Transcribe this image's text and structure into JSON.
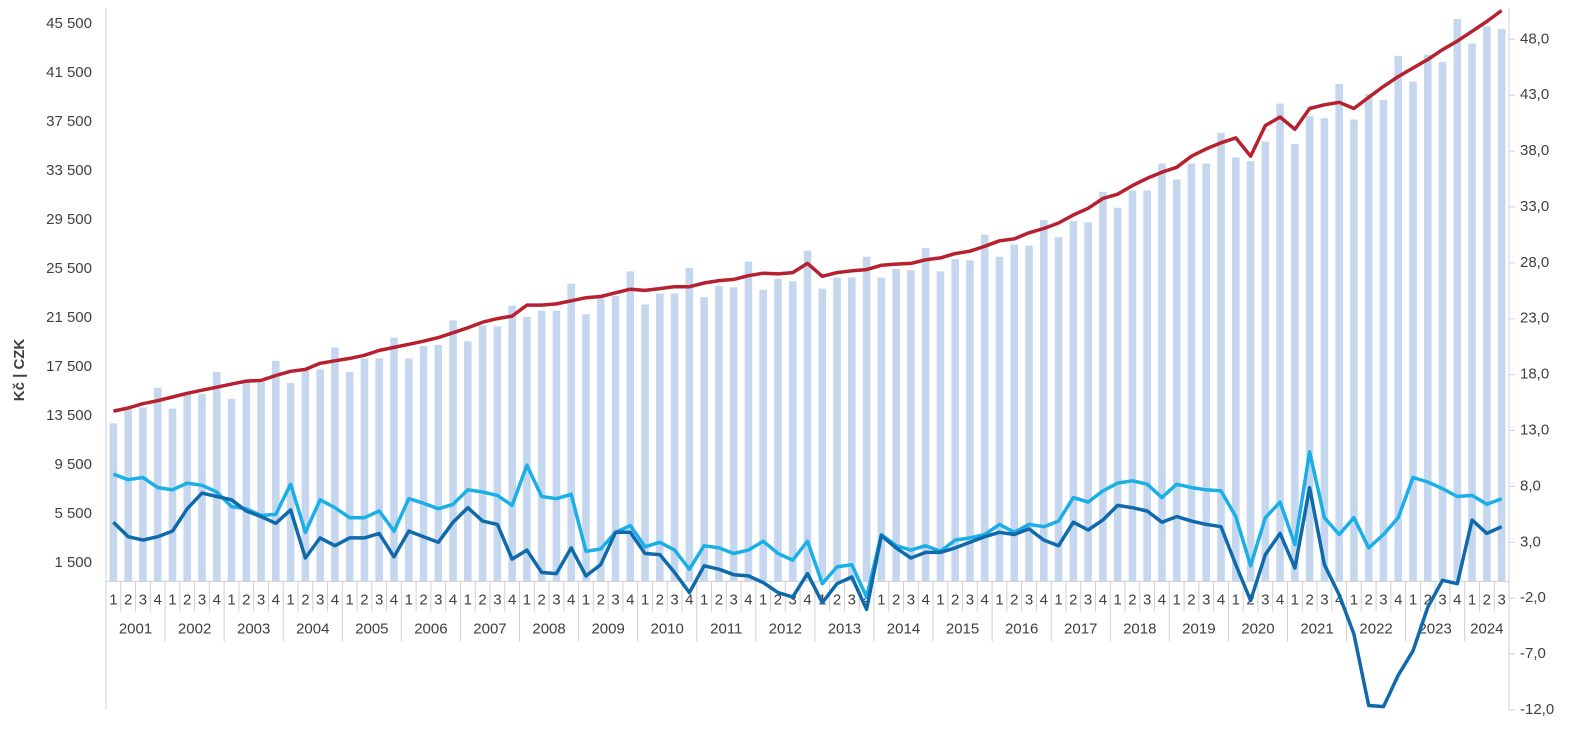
{
  "chart_data": {
    "type": "bar-line",
    "y_label": "Kč | CZK",
    "categories": [
      "1",
      "2",
      "3",
      "4",
      "1",
      "2",
      "3",
      "4",
      "1",
      "2",
      "3",
      "4",
      "1",
      "2",
      "3",
      "4",
      "1",
      "2",
      "3",
      "4",
      "1",
      "2",
      "3",
      "4",
      "1",
      "2",
      "3",
      "4",
      "1",
      "2",
      "3",
      "4",
      "1",
      "2",
      "3",
      "4",
      "1",
      "2",
      "3",
      "4",
      "1",
      "2",
      "3",
      "4",
      "1",
      "2",
      "3",
      "4",
      "1",
      "2",
      "3",
      "4",
      "1",
      "2",
      "3",
      "4",
      "1",
      "2",
      "3",
      "4",
      "1",
      "2",
      "3",
      "4",
      "1",
      "2",
      "3",
      "4",
      "1",
      "2",
      "3",
      "4",
      "1",
      "2",
      "3",
      "4",
      "1",
      "2",
      "3",
      "4",
      "1",
      "2",
      "3",
      "4",
      "1",
      "2",
      "3",
      "4",
      "1",
      "2",
      "3",
      "4",
      "1",
      "2",
      "3"
    ],
    "years": [
      "2001",
      "2002",
      "2003",
      "2004",
      "2005",
      "2006",
      "2007",
      "2008",
      "2009",
      "2010",
      "2011",
      "2012",
      "2013",
      "2014",
      "2015",
      "2016",
      "2017",
      "2018",
      "2019",
      "2020",
      "2021",
      "2022",
      "2023",
      "2024"
    ],
    "ylim": [
      -10500,
      46800
    ],
    "yticks": [
      {
        "value": 1500,
        "label": "1 500"
      },
      {
        "value": 5500,
        "label": "5 500"
      },
      {
        "value": 9500,
        "label": "9 500"
      },
      {
        "value": 13500,
        "label": "13 500"
      },
      {
        "value": 17500,
        "label": "17 500"
      },
      {
        "value": 21500,
        "label": "21 500"
      },
      {
        "value": 25500,
        "label": "25 500"
      },
      {
        "value": 29500,
        "label": "29 500"
      },
      {
        "value": 33500,
        "label": "33 500"
      },
      {
        "value": 37500,
        "label": "37 500"
      },
      {
        "value": 41500,
        "label": "41 500"
      },
      {
        "value": 45500,
        "label": "45 500"
      }
    ],
    "y2lim": [
      -12,
      50.8
    ],
    "y2ticks": [
      {
        "value": -12,
        "label": "-12,0"
      },
      {
        "value": -7,
        "label": "-7,0"
      },
      {
        "value": -2,
        "label": "-2,0"
      },
      {
        "value": 3,
        "label": "3,0"
      },
      {
        "value": 8,
        "label": "8,0"
      },
      {
        "value": 13,
        "label": "13,0"
      },
      {
        "value": 18,
        "label": "18,0"
      },
      {
        "value": 23,
        "label": "23,0"
      },
      {
        "value": 28,
        "label": "28,0"
      },
      {
        "value": 33,
        "label": "33,0"
      },
      {
        "value": 38,
        "label": "38,0"
      },
      {
        "value": 43,
        "label": "43,0"
      },
      {
        "value": 48,
        "label": "48,0"
      }
    ],
    "series": [
      {
        "kind": "bar",
        "color": "#c5d7ee",
        "values": [
          12900,
          14100,
          14200,
          15800,
          14100,
          15400,
          15300,
          17100,
          14900,
          16300,
          16300,
          18000,
          16200,
          17300,
          17300,
          19100,
          17100,
          18200,
          18200,
          19900,
          18200,
          19200,
          19300,
          21300,
          19600,
          20900,
          20800,
          22500,
          21600,
          22100,
          22100,
          24300,
          21800,
          23100,
          23300,
          25300,
          22600,
          23500,
          23500,
          25600,
          23200,
          24100,
          24000,
          26100,
          23800,
          24700,
          24500,
          27000,
          23900,
          24800,
          24800,
          26500,
          24800,
          25500,
          25400,
          27200,
          25300,
          26300,
          26200,
          28300,
          26500,
          27500,
          27400,
          29500,
          28100,
          29400,
          29300,
          31800,
          30500,
          31900,
          31900,
          34100,
          32800,
          34100,
          34100,
          36600,
          34600,
          34300,
          35900,
          39000,
          35700,
          38000,
          37800,
          40600,
          37700,
          39800,
          39300,
          42900,
          40800,
          43000,
          42400,
          45900,
          43900,
          45300,
          45100
        ]
      },
      {
        "kind": "line",
        "color": "#b7202e",
        "values": [
          13900,
          14150,
          14500,
          14750,
          15050,
          15350,
          15600,
          15850,
          16100,
          16350,
          16400,
          16800,
          17150,
          17300,
          17800,
          18000,
          18200,
          18450,
          18850,
          19100,
          19350,
          19600,
          19900,
          20300,
          20700,
          21150,
          21450,
          21650,
          22550,
          22550,
          22650,
          22900,
          23150,
          23250,
          23550,
          23850,
          23750,
          23900,
          24050,
          24050,
          24350,
          24550,
          24650,
          24950,
          25150,
          25100,
          25200,
          25950,
          24900,
          25200,
          25350,
          25450,
          25800,
          25900,
          25950,
          26250,
          26400,
          26750,
          26950,
          27350,
          27800,
          27950,
          28450,
          28800,
          29250,
          29900,
          30450,
          31250,
          31600,
          32300,
          32900,
          33400,
          33800,
          34700,
          35300,
          35800,
          36200,
          34700,
          37200,
          37900,
          36900,
          38600,
          38900,
          39100,
          38600,
          39500,
          40400,
          41200,
          41900,
          42600,
          43400,
          44100,
          44900,
          45700,
          46600
        ]
      },
      {
        "kind": "line",
        "axis": "y2",
        "color": "#1aafe6",
        "values": [
          9.1,
          8.6,
          8.8,
          7.9,
          7.7,
          8.3,
          8.1,
          7.5,
          6.2,
          6.0,
          5.4,
          5.5,
          8.2,
          3.9,
          6.8,
          6.1,
          5.2,
          5.2,
          5.8,
          4.0,
          6.9,
          6.5,
          6.0,
          6.4,
          7.7,
          7.5,
          7.2,
          6.3,
          9.9,
          7.1,
          6.9,
          7.3,
          2.2,
          2.4,
          3.9,
          4.5,
          2.6,
          3.0,
          2.3,
          0.6,
          2.7,
          2.5,
          2.0,
          2.3,
          3.1,
          2.0,
          1.4,
          3.1,
          -0.7,
          0.8,
          1.0,
          -1.9,
          3.7,
          2.7,
          2.3,
          2.7,
          2.2,
          3.2,
          3.4,
          3.7,
          4.6,
          3.9,
          4.6,
          4.4,
          4.9,
          7.0,
          6.6,
          7.6,
          8.3,
          8.5,
          8.2,
          7.0,
          8.2,
          7.9,
          7.7,
          7.6,
          5.3,
          0.9,
          5.2,
          6.6,
          2.8,
          11.1,
          5.2,
          3.7,
          5.2,
          2.5,
          3.7,
          5.2,
          8.8,
          8.4,
          7.8,
          7.1,
          7.2,
          6.4,
          6.9
        ]
      },
      {
        "kind": "line",
        "axis": "y2",
        "color": "#0f6aab",
        "values": [
          4.8,
          3.5,
          3.2,
          3.5,
          4.0,
          6.0,
          7.4,
          7.1,
          6.8,
          5.8,
          5.3,
          4.7,
          5.9,
          1.6,
          3.4,
          2.7,
          3.4,
          3.4,
          3.8,
          1.7,
          4.0,
          3.5,
          3.0,
          4.8,
          6.1,
          4.9,
          4.6,
          1.5,
          2.3,
          0.3,
          0.2,
          2.5,
          0.0,
          1.0,
          3.9,
          3.9,
          2.0,
          1.9,
          0.3,
          -1.5,
          0.9,
          0.6,
          0.1,
          0.0,
          -0.6,
          -1.5,
          -1.9,
          0.2,
          -2.4,
          -0.7,
          -0.1,
          -3.0,
          3.6,
          2.5,
          1.6,
          2.1,
          2.1,
          2.5,
          3.0,
          3.5,
          3.9,
          3.7,
          4.2,
          3.2,
          2.7,
          4.8,
          4.1,
          5.0,
          6.3,
          6.1,
          5.8,
          4.8,
          5.3,
          4.9,
          4.6,
          4.4,
          1.0,
          -2.2,
          1.9,
          3.8,
          0.7,
          7.9,
          1.0,
          -1.7,
          -5.2,
          -11.6,
          -11.7,
          -8.9,
          -6.7,
          -2.8,
          -0.4,
          -0.7,
          5.0,
          3.8,
          4.4
        ]
      }
    ]
  }
}
